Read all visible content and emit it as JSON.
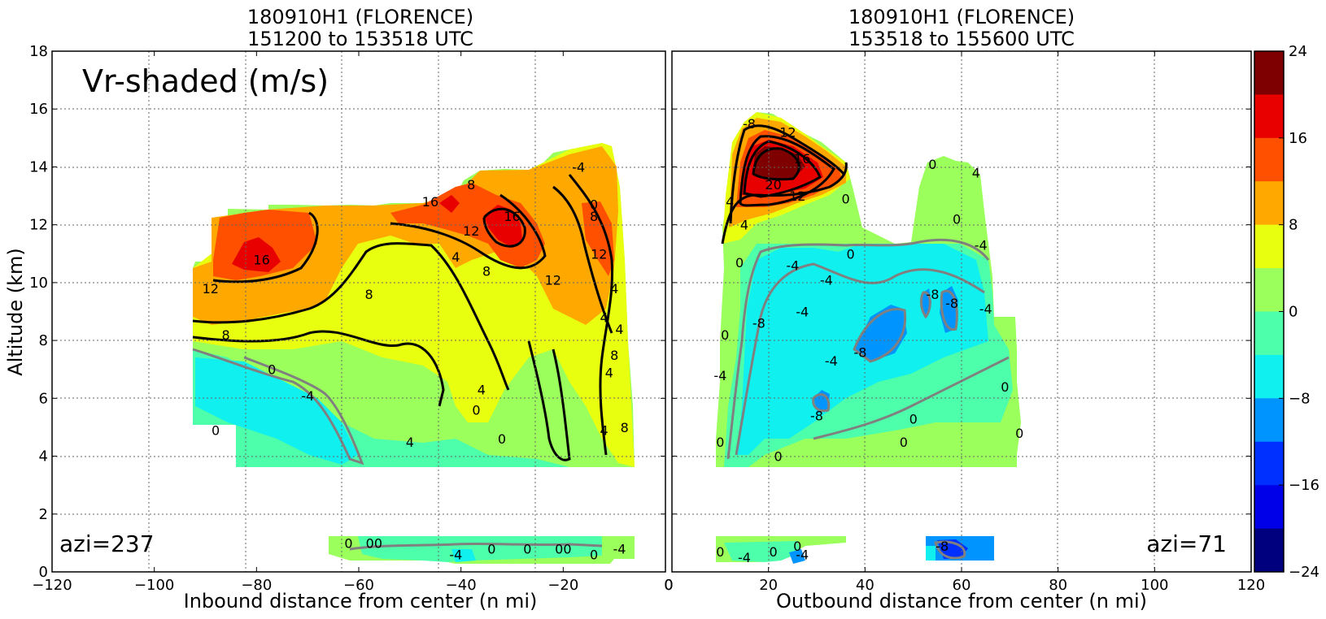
{
  "chart_data": [
    {
      "type": "heatmap",
      "panel": "left",
      "title_line1": "180910H1 (FLORENCE)",
      "title_line2": "151200 to 153518 UTC",
      "xlabel": "Inbound distance from center (n mi)",
      "ylabel": "Altitude (km)",
      "xlim": [
        -120,
        0
      ],
      "ylim": [
        0,
        18
      ],
      "xticks": [
        -120,
        -100,
        -80,
        -60,
        -40,
        -20,
        0
      ],
      "yticks": [
        0,
        2,
        4,
        6,
        8,
        10,
        12,
        14,
        16,
        18
      ],
      "grid": true,
      "annotation": "Vr-shaded (m/s)",
      "azimuth_label": "azi=237",
      "contour_labels": [
        {
          "text": "16",
          "x": -79,
          "y": 10.8
        },
        {
          "text": "12",
          "x": -89,
          "y": 9.8
        },
        {
          "text": "8",
          "x": -86,
          "y": 8.2
        },
        {
          "text": "0",
          "x": -77,
          "y": 7.0
        },
        {
          "text": "-4",
          "x": -70,
          "y": 6.1
        },
        {
          "text": "0",
          "x": -88,
          "y": 4.9
        },
        {
          "text": "16",
          "x": -46,
          "y": 12.8
        },
        {
          "text": "8",
          "x": -38,
          "y": 13.4
        },
        {
          "text": "16",
          "x": -30,
          "y": 12.3
        },
        {
          "text": "12",
          "x": -38,
          "y": 11.8
        },
        {
          "text": "4",
          "x": -41,
          "y": 10.9
        },
        {
          "text": "8",
          "x": -35,
          "y": 10.4
        },
        {
          "text": "8",
          "x": -58,
          "y": 9.6
        },
        {
          "text": "12",
          "x": -22,
          "y": 10.1
        },
        {
          "text": "0",
          "x": -14,
          "y": 12.7
        },
        {
          "text": "8",
          "x": -14,
          "y": 12.3
        },
        {
          "text": "12",
          "x": -13,
          "y": 11.0
        },
        {
          "text": "-4",
          "x": -17,
          "y": 14.0
        },
        {
          "text": "4",
          "x": -36,
          "y": 6.3
        },
        {
          "text": "0",
          "x": -37,
          "y": 5.6
        },
        {
          "text": "0",
          "x": -32,
          "y": 4.6
        },
        {
          "text": "4",
          "x": -50,
          "y": 4.5
        },
        {
          "text": "4",
          "x": -12,
          "y": 4.9
        },
        {
          "text": "4",
          "x": -9,
          "y": 8.4
        },
        {
          "text": "8",
          "x": -10,
          "y": 7.5
        },
        {
          "text": "4",
          "x": -11,
          "y": 6.9
        },
        {
          "text": "8",
          "x": -8,
          "y": 5.0
        },
        {
          "text": "4",
          "x": -12,
          "y": 8.8
        },
        {
          "text": "4",
          "x": -10,
          "y": 9.8
        },
        {
          "text": "0",
          "x": -62,
          "y": 1.0
        },
        {
          "text": "00",
          "x": -57,
          "y": 1.0
        },
        {
          "text": "-4",
          "x": -41,
          "y": 0.6
        },
        {
          "text": "0",
          "x": -34,
          "y": 0.8
        },
        {
          "text": "0",
          "x": -27,
          "y": 0.8
        },
        {
          "text": "00",
          "x": -20,
          "y": 0.8
        },
        {
          "text": "0",
          "x": -14,
          "y": 0.6
        },
        {
          "text": "-4",
          "x": -9,
          "y": 0.8
        }
      ]
    },
    {
      "type": "heatmap",
      "panel": "right",
      "title_line1": "180910H1 (FLORENCE)",
      "title_line2": "153518 to 155600 UTC",
      "xlabel": "Outbound distance from center (n mi)",
      "ylabel": "",
      "xlim": [
        0,
        120
      ],
      "ylim": [
        0,
        18
      ],
      "xticks": [
        0,
        20,
        40,
        60,
        80,
        100,
        120
      ],
      "yticks": [
        0,
        2,
        4,
        6,
        8,
        10,
        12,
        14,
        16,
        18
      ],
      "grid": true,
      "azimuth_label": "azi=71",
      "contour_labels": [
        {
          "text": "-8",
          "x": 16,
          "y": 15.5
        },
        {
          "text": "12",
          "x": 24,
          "y": 15.2
        },
        {
          "text": "16",
          "x": 27,
          "y": 14.3
        },
        {
          "text": "20",
          "x": 21,
          "y": 13.4
        },
        {
          "text": "12",
          "x": 26,
          "y": 13.0
        },
        {
          "text": "4",
          "x": 12,
          "y": 12.8
        },
        {
          "text": "0",
          "x": 36,
          "y": 12.9
        },
        {
          "text": "0",
          "x": 54,
          "y": 14.1
        },
        {
          "text": "4",
          "x": 63,
          "y": 13.8
        },
        {
          "text": "0",
          "x": 59,
          "y": 12.2
        },
        {
          "text": "-4",
          "x": 64,
          "y": 11.3
        },
        {
          "text": "4",
          "x": 15,
          "y": 12.0
        },
        {
          "text": "0",
          "x": 37,
          "y": 11.0
        },
        {
          "text": "0",
          "x": 14,
          "y": 10.7
        },
        {
          "text": "-4",
          "x": 25,
          "y": 10.6
        },
        {
          "text": "-4",
          "x": 32,
          "y": 10.1
        },
        {
          "text": "-8",
          "x": 54,
          "y": 9.6
        },
        {
          "text": "-8",
          "x": 58,
          "y": 9.3
        },
        {
          "text": "-4",
          "x": 65,
          "y": 9.1
        },
        {
          "text": "-4",
          "x": 27,
          "y": 9.0
        },
        {
          "text": "-8",
          "x": 18,
          "y": 8.6
        },
        {
          "text": "0",
          "x": 11,
          "y": 8.2
        },
        {
          "text": "-4",
          "x": 33,
          "y": 7.3
        },
        {
          "text": "-8",
          "x": 39,
          "y": 7.6
        },
        {
          "text": "-4",
          "x": 10,
          "y": 6.8
        },
        {
          "text": "0",
          "x": 69,
          "y": 6.4
        },
        {
          "text": "-8",
          "x": 30,
          "y": 5.4
        },
        {
          "text": "0",
          "x": 50,
          "y": 5.3
        },
        {
          "text": "0",
          "x": 48,
          "y": 4.5
        },
        {
          "text": "0",
          "x": 72,
          "y": 4.8
        },
        {
          "text": "0",
          "x": 10,
          "y": 4.5
        },
        {
          "text": "0",
          "x": 22,
          "y": 4.0
        },
        {
          "text": "0",
          "x": 10,
          "y": 0.7
        },
        {
          "text": "-4",
          "x": 15,
          "y": 0.5
        },
        {
          "text": "0",
          "x": 21,
          "y": 0.7
        },
        {
          "text": "-4",
          "x": 27,
          "y": 0.6
        },
        {
          "text": "0",
          "x": 26,
          "y": 0.9
        },
        {
          "text": "-8",
          "x": 56,
          "y": 0.9
        }
      ]
    },
    {
      "type": "colorbar",
      "levels": [
        24,
        20,
        16,
        12,
        8,
        4,
        0,
        -4,
        -8,
        -12,
        -16,
        -20,
        -24
      ],
      "tick_labels": [
        "24",
        "16",
        "8",
        "0",
        "−8",
        "−16",
        "−24"
      ],
      "tick_values": [
        24,
        16,
        8,
        0,
        -8,
        -16,
        -24
      ],
      "colors": [
        "#7f0000",
        "#e80000",
        "#ff5000",
        "#ffa800",
        "#e8ff10",
        "#9bff5c",
        "#4dffaa",
        "#10f0ef",
        "#0094ff",
        "#0030ff",
        "#0000e8",
        "#00007f"
      ]
    }
  ]
}
